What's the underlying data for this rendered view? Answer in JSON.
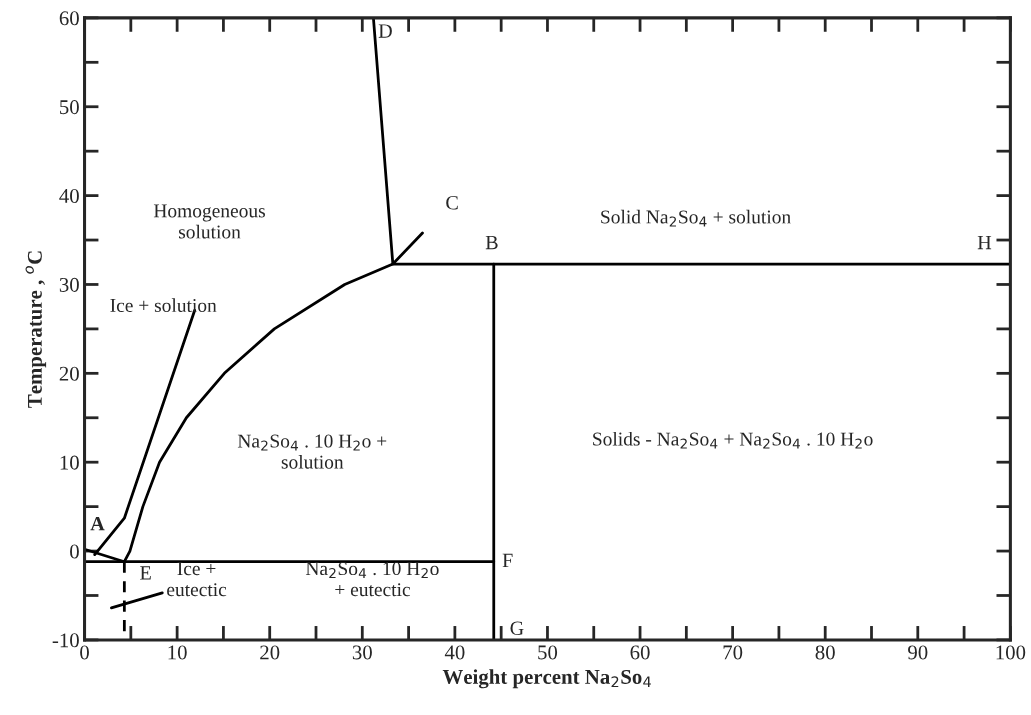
{
  "chart_data": {
    "type": "line",
    "xlabel": "Weight percent Na$_{2}$So$_{4}$",
    "ylabel": "Temperature , $^{o}$C",
    "xlim": [
      0,
      100
    ],
    "ylim": [
      -10,
      60
    ],
    "xticks": [
      0,
      {
        "value": 5,
        "label": null
      },
      10,
      {
        "value": 15,
        "label": null
      },
      20,
      {
        "value": 25,
        "label": null
      },
      30,
      {
        "value": 35,
        "label": null
      },
      40,
      {
        "value": 45,
        "label": null
      },
      50,
      {
        "value": 55,
        "label": null
      },
      60,
      {
        "value": 65,
        "label": null
      },
      70,
      {
        "value": 75,
        "label": null
      },
      80,
      {
        "value": 85,
        "label": null
      },
      90,
      {
        "value": 95,
        "label": null
      },
      100
    ],
    "yticks": [
      -10,
      {
        "value": -5,
        "label": null
      },
      0,
      {
        "value": 5,
        "label": null
      },
      10,
      {
        "value": 15,
        "label": null
      },
      20,
      {
        "value": 25,
        "label": null
      },
      30,
      {
        "value": 35,
        "label": null
      },
      40,
      {
        "value": 45,
        "label": null
      },
      50,
      {
        "value": 55,
        "label": null
      },
      60
    ],
    "grid": false,
    "legend": false,
    "marker": "none",
    "series": [
      {
        "color": "#000000",
        "x": [
          0,
          4.3,
          4.9,
          6.3,
          8.1,
          11,
          15.1,
          20.5,
          28.1,
          33.3,
          100
        ],
        "values": [
          0.2,
          -1.2,
          0,
          5,
          10,
          15,
          20,
          25,
          30,
          32.3,
          32.3
        ]
      },
      {
        "color": "#000000",
        "x": [
          31.2,
          33.3,
          36.5
        ],
        "values": [
          60,
          32.3,
          35.8
        ]
      },
      {
        "color": "#000000",
        "x": [
          44.2,
          44.2
        ],
        "values": [
          32.3,
          -10
        ]
      },
      {
        "color": "#000000",
        "x": [
          0,
          44.2
        ],
        "values": [
          -1.2,
          -1.2
        ]
      },
      {
        "color": "#000000",
        "x": [
          1.1,
          4.3,
          11.9
        ],
        "values": [
          -0.4,
          3.7,
          27.1
        ]
      },
      {
        "color": "#000000",
        "x": [
          2.9,
          8.4
        ],
        "values": [
          -6.4,
          -4.7
        ]
      },
      {
        "color": "#000000",
        "x": [
          4.3,
          4.3
        ],
        "values": [
          -1.2,
          -10
        ],
        "line_style": "dashed"
      }
    ],
    "annotations": [
      "Homogeneous\nsolution",
      "Solid Na$_{2}$So$_{4}$ + solution",
      "Ice + solution",
      "Na$_{2}$So$_{4}$ . 10 H$_{2}$o +\nsolution",
      "Solids - Na$_{2}$So$_{4}$ + Na$_{2}$So$_{4}$ . 10 H$_{2}$o",
      "Ice +\neutectic",
      "Na$_{2}$So$_{4}$ . 10 H$_{2}$o\n+ eutectic",
      "A",
      "E",
      "F",
      "G",
      "B",
      "C",
      "D",
      "H"
    ]
  }
}
